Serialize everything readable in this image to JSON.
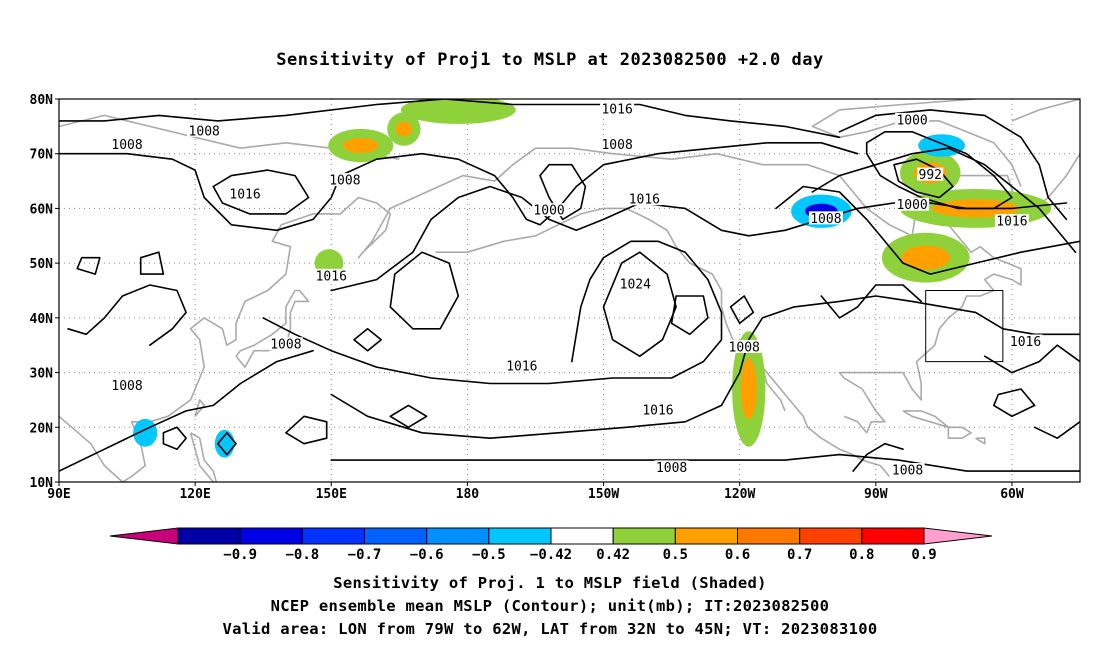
{
  "title": "Sensitivity of Proj1 to MSLP at 2023082500 +2.0 day",
  "map": {
    "lat_labels": [
      "80N",
      "70N",
      "60N",
      "50N",
      "40N",
      "30N",
      "20N",
      "10N"
    ],
    "lat_values": [
      80,
      70,
      60,
      50,
      40,
      30,
      20,
      10
    ],
    "lon_labels": [
      "90E",
      "120E",
      "150E",
      "180",
      "150W",
      "120W",
      "90W",
      "60W"
    ],
    "lon_values": [
      90,
      120,
      150,
      180,
      210,
      240,
      270,
      300
    ],
    "lon_range": [
      90,
      315
    ],
    "lat_range": [
      10,
      80
    ],
    "contour_labels": [
      {
        "text": "1016",
        "lon": 213,
        "lat": 78
      },
      {
        "text": "1008",
        "lon": 122,
        "lat": 74
      },
      {
        "text": "1008",
        "lon": 105,
        "lat": 71.5
      },
      {
        "text": "1008",
        "lon": 213,
        "lat": 71.5
      },
      {
        "text": "1000",
        "lon": 278,
        "lat": 76
      },
      {
        "text": "1008",
        "lon": 153,
        "lat": 65
      },
      {
        "text": "992",
        "lon": 282,
        "lat": 66
      },
      {
        "text": "1016",
        "lon": 131,
        "lat": 62.5
      },
      {
        "text": "1000",
        "lon": 278,
        "lat": 60.5
      },
      {
        "text": "1016",
        "lon": 219,
        "lat": 61.5
      },
      {
        "text": "1000",
        "lon": 198,
        "lat": 59.5
      },
      {
        "text": "1008",
        "lon": 259,
        "lat": 58
      },
      {
        "text": "1016",
        "lon": 300,
        "lat": 57.5
      },
      {
        "text": "1016",
        "lon": 150,
        "lat": 47.5
      },
      {
        "text": "1024",
        "lon": 217,
        "lat": 46
      },
      {
        "text": "1008",
        "lon": 140,
        "lat": 35
      },
      {
        "text": "1016",
        "lon": 303,
        "lat": 35.5
      },
      {
        "text": "1008",
        "lon": 241,
        "lat": 34.5
      },
      {
        "text": "1016",
        "lon": 192,
        "lat": 31
      },
      {
        "text": "1008",
        "lon": 105,
        "lat": 27.5
      },
      {
        "text": "1016",
        "lon": 222,
        "lat": 23
      },
      {
        "text": "1008",
        "lon": 225,
        "lat": 12.5
      },
      {
        "text": "1008",
        "lon": 277,
        "lat": 12
      }
    ],
    "valid_area": {
      "lon": [
        281,
        298
      ],
      "lat": [
        32,
        45
      ]
    },
    "sensitivity_patches": [
      {
        "sign": "positive",
        "level": 0.6,
        "lon": [
          150,
          163
        ],
        "lat": [
          69,
          74
        ]
      },
      {
        "sign": "positive",
        "level": 0.6,
        "lon": [
          163,
          169
        ],
        "lat": [
          72,
          77
        ]
      },
      {
        "sign": "positive",
        "level": 0.5,
        "lon": [
          166,
          190
        ],
        "lat": [
          76,
          80
        ]
      },
      {
        "sign": "positive",
        "level": 0.6,
        "lon": [
          276,
          288
        ],
        "lat": [
          63,
          70
        ]
      },
      {
        "sign": "positive",
        "level": 0.6,
        "lon": [
          276,
          308
        ],
        "lat": [
          57,
          63
        ]
      },
      {
        "sign": "positive",
        "level": 0.6,
        "lon": [
          272,
          290
        ],
        "lat": [
          47,
          55
        ]
      },
      {
        "sign": "positive",
        "level": 0.6,
        "lon": [
          239,
          245
        ],
        "lat": [
          17,
          37
        ]
      },
      {
        "sign": "positive",
        "level": 0.5,
        "lon": [
          147,
          152
        ],
        "lat": [
          48,
          52
        ]
      },
      {
        "sign": "negative",
        "level": -0.8,
        "lon": [
          252,
          264
        ],
        "lat": [
          57,
          62
        ]
      },
      {
        "sign": "negative",
        "level": -0.5,
        "lon": [
          280,
          289
        ],
        "lat": [
          70,
          73
        ]
      },
      {
        "sign": "negative",
        "level": -0.5,
        "lon": [
          107,
          111
        ],
        "lat": [
          17,
          21
        ]
      },
      {
        "sign": "negative",
        "level": -0.5,
        "lon": [
          125,
          128
        ],
        "lat": [
          15,
          19
        ]
      }
    ]
  },
  "colorbar": {
    "colors": [
      "#c8007a",
      "#0000a6",
      "#0000e6",
      "#0033ff",
      "#0063ff",
      "#0090ff",
      "#00c8ff",
      "#ffffff",
      "#8fd13a",
      "#ffa000",
      "#ff7800",
      "#ff4000",
      "#ff0000",
      "#ff9ed0"
    ],
    "labels": [
      "-0.9",
      "-0.8",
      "-0.7",
      "-0.6",
      "-0.5",
      "-0.42",
      "0.42",
      "0.5",
      "0.6",
      "0.7",
      "0.8",
      "0.9"
    ]
  },
  "captions": [
    "Sensitivity of Proj. 1 to MSLP field (Shaded)",
    "NCEP ensemble mean MSLP (Contour); unit(mb); IT:2023082500",
    "Valid area: LON from 79W to 62W, LAT from 32N to 45N; VT: 2023083100"
  ]
}
